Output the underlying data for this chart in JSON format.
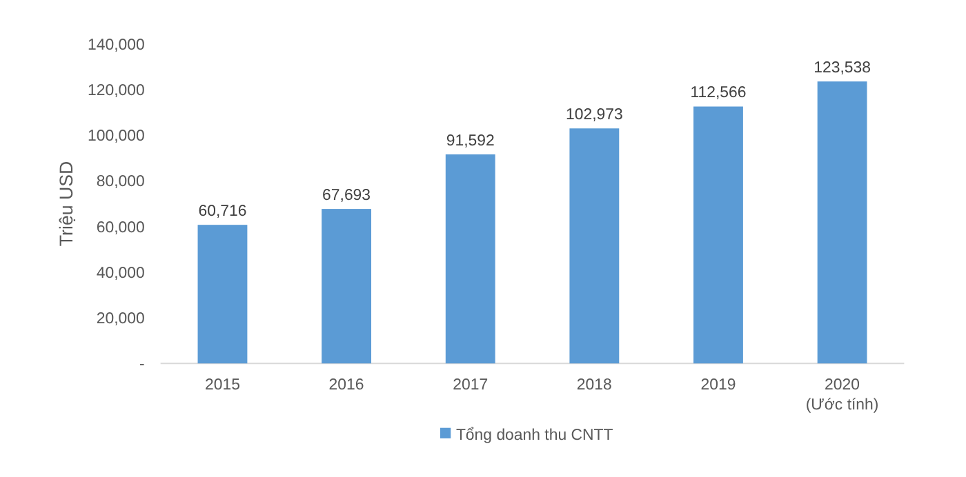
{
  "chart_data": {
    "type": "bar",
    "ylabel": "Triệu USD",
    "categories": [
      "2015",
      "2016",
      "2017",
      "2018",
      "2019",
      "2020\n(Ước tính)"
    ],
    "series": [
      {
        "name": "Tổng doanh thu CNTT",
        "color": "#5b9bd5",
        "values": [
          60716,
          67693,
          91592,
          102973,
          112566,
          123538
        ],
        "value_labels": [
          "60,716",
          "67,693",
          "91,592",
          "102,973",
          "112,566",
          "123,538"
        ]
      }
    ],
    "ylim": [
      0,
      140000
    ],
    "yticks": [
      {
        "value": 0,
        "label": "-"
      },
      {
        "value": 20000,
        "label": "20,000"
      },
      {
        "value": 40000,
        "label": "40,000"
      },
      {
        "value": 60000,
        "label": "60,000"
      },
      {
        "value": 80000,
        "label": "80,000"
      },
      {
        "value": 100000,
        "label": "100,000"
      },
      {
        "value": 120000,
        "label": "120,000"
      },
      {
        "value": 140000,
        "label": "140,000"
      }
    ],
    "legend": "bottom",
    "grid": false
  }
}
